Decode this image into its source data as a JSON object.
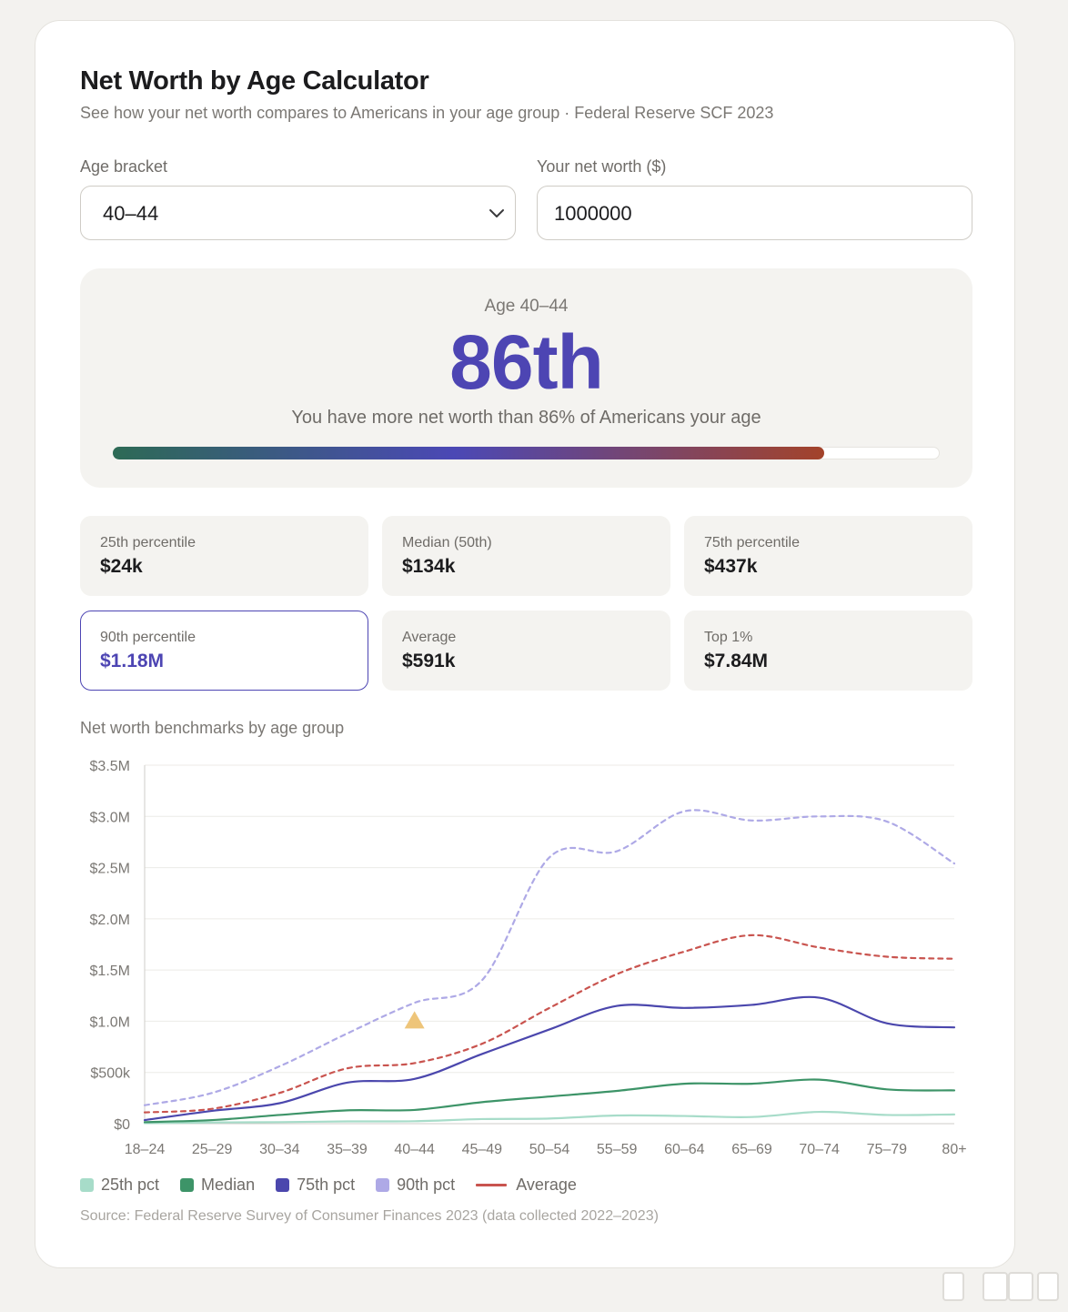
{
  "header": {
    "title": "Net Worth by Age Calculator",
    "subtitle": "See how your net worth compares to Americans in your age group · Federal Reserve SCF 2023"
  },
  "form": {
    "age_label": "Age bracket",
    "age_value": "40–44",
    "networth_label": "Your net worth ($)",
    "networth_value": "1000000"
  },
  "result": {
    "age_text": "Age 40–44",
    "percentile": "86th",
    "description": "You have more net worth than 86% of Americans your age",
    "progress_fraction": 0.86
  },
  "stats": [
    {
      "label": "25th percentile",
      "value": "$24k"
    },
    {
      "label": "Median (50th)",
      "value": "$134k"
    },
    {
      "label": "75th percentile",
      "value": "$437k"
    },
    {
      "label": "90th percentile",
      "value": "$1.18M"
    },
    {
      "label": "Average",
      "value": "$591k"
    },
    {
      "label": "Top 1%",
      "value": "$7.84M"
    }
  ],
  "chart_title": "Net worth benchmarks by age group",
  "chart_data": {
    "type": "line",
    "categories": [
      "18–24",
      "25–29",
      "30–34",
      "35–39",
      "40–44",
      "45–49",
      "50–54",
      "55–59",
      "60–64",
      "65–69",
      "70–74",
      "75–79",
      "80+"
    ],
    "y_ticks": [
      "$0",
      "$500k",
      "$1.0M",
      "$1.5M",
      "$2.0M",
      "$2.5M",
      "$3.0M",
      "$3.5M"
    ],
    "ylim": [
      0,
      3500000
    ],
    "grid": true,
    "series": [
      {
        "name": "25th pct",
        "color": "#a7dcc9",
        "style": "solid",
        "values": [
          5000,
          12000,
          15000,
          22000,
          24000,
          45000,
          50000,
          80000,
          75000,
          65000,
          115000,
          85000,
          90000
        ]
      },
      {
        "name": "Median",
        "color": "#3d9468",
        "style": "solid",
        "values": [
          15000,
          35000,
          85000,
          130000,
          134000,
          210000,
          265000,
          320000,
          390000,
          390000,
          430000,
          335000,
          325000
        ]
      },
      {
        "name": "75th pct",
        "color": "#4b47ad",
        "style": "solid",
        "values": [
          35000,
          125000,
          200000,
          400000,
          437000,
          680000,
          920000,
          1150000,
          1130000,
          1160000,
          1230000,
          980000,
          940000
        ]
      },
      {
        "name": "90th pct",
        "color": "#aea9e6",
        "style": "dashed",
        "values": [
          180000,
          300000,
          560000,
          880000,
          1180000,
          1400000,
          2600000,
          2660000,
          3050000,
          2960000,
          3000000,
          2950000,
          2540000
        ]
      },
      {
        "name": "Average",
        "color": "#c9544f",
        "style": "dashed",
        "values": [
          110000,
          145000,
          300000,
          540000,
          591000,
          780000,
          1130000,
          1460000,
          1680000,
          1840000,
          1720000,
          1630000,
          1610000
        ]
      }
    ],
    "marker": {
      "category": "40–44",
      "value": 1000000,
      "color": "#eec57a"
    },
    "legend_position": "bottom-left"
  },
  "source": "Source: Federal Reserve Survey of Consumer Finances 2023 (data collected 2022–2023)"
}
